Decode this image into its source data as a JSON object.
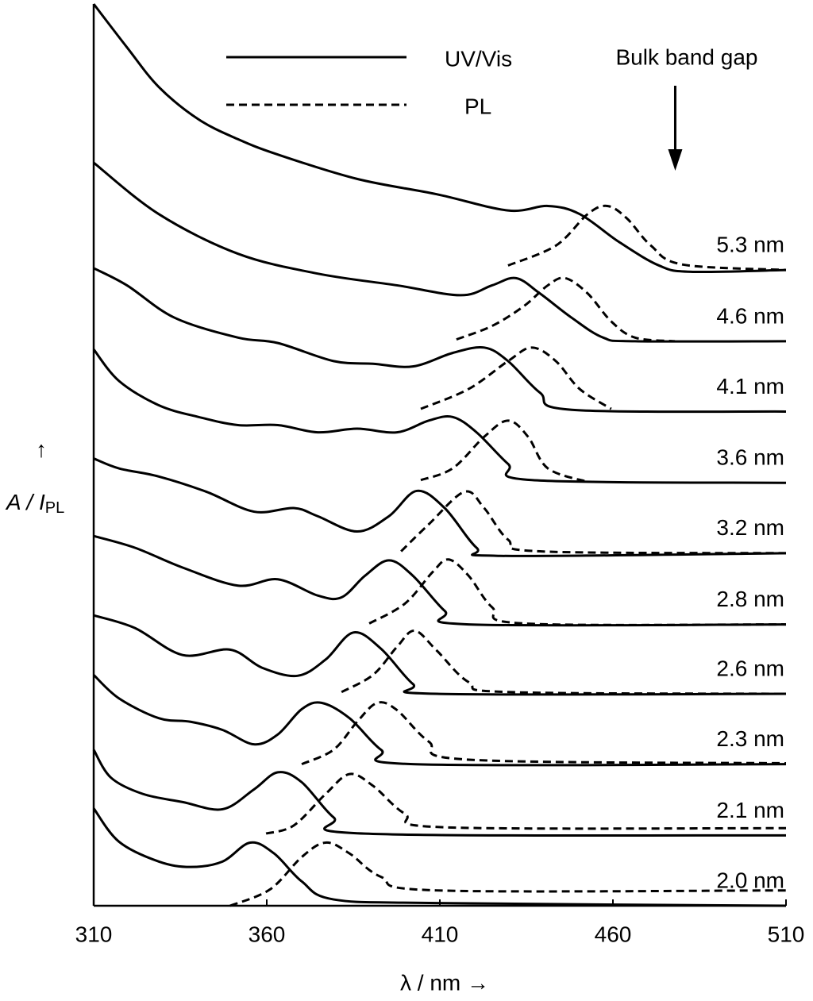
{
  "chart_data": {
    "type": "stacked-spectra",
    "xlabel": "λ / nm →",
    "ylabel_arrow": "↑",
    "ylabel": "A / I",
    "ylabel_sub": "PL",
    "xlim": [
      310,
      510
    ],
    "ylim": [
      0,
      100
    ],
    "xticks": [
      310,
      360,
      410,
      460,
      510
    ],
    "color": "#000000",
    "legend": [
      {
        "name": "UV/Vis",
        "dash": "solid"
      },
      {
        "name": "PL",
        "dash": "dashed"
      }
    ],
    "bulk_band_gap": {
      "label": "Bulk band gap",
      "x": 478
    },
    "samples": [
      {
        "label": "5.3 nm",
        "uvvis": {
          "x": [
            310,
            319.6,
            328.8,
            340.3,
            351.7,
            363.2,
            386.1,
            409.1,
            429.7,
            441.2,
            450.4,
            461.8,
            473.3,
            482.5,
            510
          ],
          "values": [
            100,
            95.2,
            90.8,
            87.2,
            85.0,
            83.3,
            80.6,
            78.9,
            77.1,
            77.6,
            76.7,
            73.6,
            71.0,
            70.3,
            70.5
          ]
        },
        "pl": {
          "x": [
            429.7,
            443.5,
            452.7,
            458.4,
            464.1,
            471,
            480.2,
            510
          ],
          "values": [
            71.0,
            73.2,
            76.7,
            77.6,
            76.2,
            73.2,
            71.1,
            70.5
          ]
        }
      },
      {
        "label": "4.6 nm",
        "uvvis": {
          "x": [
            310,
            328.8,
            351.7,
            374.7,
            397.6,
            416,
            425.1,
            432,
            438.9,
            448.1,
            457.2,
            466.4,
            510
          ],
          "values": [
            82.4,
            76.7,
            72.3,
            70.1,
            68.8,
            67.7,
            68.8,
            69.6,
            67.9,
            65.2,
            63.0,
            62.6,
            62.6
          ]
        },
        "pl": {
          "x": [
            414.8,
            425.1,
            434.3,
            441.2,
            446.2,
            452.7,
            459.5,
            466.4,
            477.9
          ],
          "values": [
            62.8,
            64.3,
            66.5,
            68.8,
            69.6,
            67.9,
            64.8,
            63.0,
            62.6
          ]
        }
      },
      {
        "label": "4.1 nm",
        "uvvis": {
          "x": [
            310,
            319.6,
            333.4,
            351.7,
            363.2,
            379.3,
            390.7,
            402.2,
            413.7,
            422.8,
            429.7,
            438.9,
            448.1,
            510
          ],
          "values": [
            70.7,
            68.8,
            65.2,
            63.0,
            62.4,
            60.4,
            60.1,
            59.8,
            61.3,
            61.9,
            60.4,
            56.9,
            55.0,
            54.8
          ]
        },
        "pl": {
          "x": [
            404.5,
            418.3,
            429.7,
            436.6,
            443.5,
            450.4,
            459.5
          ],
          "values": [
            55.1,
            57.3,
            60.4,
            61.9,
            60.4,
            57.3,
            55.1
          ]
        }
      },
      {
        "label": "3.6 nm",
        "uvvis": {
          "x": [
            310,
            317.3,
            328.8,
            340.3,
            351.7,
            363.2,
            374.7,
            386.1,
            397.6,
            406.8,
            413.7,
            420.6,
            429.7,
            436.6,
            510
          ],
          "values": [
            61.7,
            58.2,
            55.5,
            54.2,
            53.3,
            53.3,
            52.5,
            52.9,
            52.5,
            53.8,
            54.2,
            52.5,
            49.0,
            47.2,
            46.9
          ]
        },
        "pl": {
          "x": [
            404.5,
            413.7,
            422.8,
            429.7,
            435.5,
            441.2,
            452.7
          ],
          "values": [
            47.2,
            48.5,
            52.0,
            53.8,
            52.0,
            48.5,
            47.0
          ]
        }
      },
      {
        "label": "3.2 nm",
        "uvvis": {
          "x": [
            310,
            317.3,
            328.8,
            342.6,
            356.3,
            367.8,
            374.7,
            386.1,
            395.3,
            403.3,
            411.4,
            420.6,
            427.4,
            510
          ],
          "values": [
            49.6,
            48.5,
            47.6,
            45.9,
            43.7,
            44.1,
            43.2,
            41.5,
            43.2,
            46.0,
            44.1,
            39.7,
            38.8,
            39.1
          ]
        },
        "pl": {
          "x": [
            398.8,
            406.8,
            417.1,
            422.8,
            429.7,
            438.9,
            510
          ],
          "values": [
            39.3,
            42.3,
            45.9,
            44.1,
            40.6,
            39.3,
            39.1
          ]
        }
      },
      {
        "label": "2.8 nm",
        "uvvis": {
          "x": [
            310,
            321.9,
            335.7,
            351.7,
            363.2,
            374.7,
            381.6,
            388.4,
            395.3,
            402.2,
            411.4,
            418.3,
            510
          ],
          "values": [
            41.0,
            39.7,
            37.5,
            35.5,
            36.2,
            34.4,
            34.2,
            36.6,
            38.3,
            36.6,
            32.7,
            31.2,
            31.2
          ]
        },
        "pl": {
          "x": [
            389.6,
            399.9,
            407.9,
            412.5,
            418.3,
            425.1,
            434.3,
            510
          ],
          "values": [
            31.3,
            33.5,
            37.0,
            38.4,
            36.6,
            33.1,
            31.3,
            31.2
          ]
        }
      },
      {
        "label": "2.6 nm",
        "uvvis": {
          "x": [
            310,
            321.9,
            335.7,
            349.4,
            358.6,
            368.9,
            377,
            385,
            393,
            402.2,
            409.1,
            510
          ],
          "values": [
            32.2,
            30.8,
            27.8,
            28.4,
            26.4,
            25.5,
            27.3,
            30.3,
            28.5,
            24.6,
            23.5,
            23.5
          ]
        },
        "pl": {
          "x": [
            381.6,
            390.7,
            397.6,
            402.7,
            409.1,
            418.3,
            429.7,
            510
          ],
          "values": [
            23.7,
            25.6,
            28.7,
            30.5,
            28.3,
            24.8,
            23.7,
            23.5
          ]
        }
      },
      {
        "label": "2.3 nm",
        "uvvis": {
          "x": [
            310,
            317.3,
            328.8,
            338,
            347.2,
            356.3,
            363.2,
            370.1,
            375.8,
            383.9,
            393,
            402.2,
            510
          ],
          "values": [
            25.6,
            23.0,
            20.8,
            20.4,
            19.5,
            17.9,
            19.0,
            21.8,
            22.5,
            20.8,
            17.3,
            15.7,
            15.7
          ]
        },
        "pl": {
          "x": [
            370.1,
            379.3,
            386.1,
            391.9,
            397.6,
            406.8,
            418.3,
            510
          ],
          "values": [
            15.7,
            17.3,
            20.4,
            22.5,
            21.7,
            18.2,
            16.2,
            15.8
          ]
        }
      },
      {
        "label": "2.1 nm",
        "uvvis": {
          "x": [
            310,
            315,
            324.2,
            335.7,
            347.2,
            356.3,
            363.2,
            370.1,
            379.3,
            388.4,
            510
          ],
          "values": [
            17.3,
            14.2,
            12.4,
            11.5,
            10.7,
            12.9,
            14.8,
            13.7,
            9.8,
            8.0,
            7.8
          ]
        },
        "pl": {
          "x": [
            359.8,
            367.8,
            377,
            383.9,
            390.7,
            399.9,
            411.4,
            510
          ],
          "values": [
            8.0,
            8.9,
            12.4,
            14.6,
            13.3,
            10.2,
            8.7,
            8.6
          ]
        }
      },
      {
        "label": "2.0 nm",
        "uvvis": {
          "x": [
            310,
            317.3,
            328.8,
            338,
            347.2,
            355.2,
            362.1,
            370.1,
            379.3,
            409.1,
            510
          ],
          "values": [
            10.8,
            7.1,
            4.9,
            4.3,
            4.9,
            7.0,
            5.8,
            2.7,
            0.7,
            0.3,
            0
          ]
        },
        "pl": {
          "x": [
            349.4,
            360.9,
            370.1,
            377,
            383.9,
            393,
            409.1,
            510
          ],
          "values": [
            0,
            1.8,
            5.4,
            7.0,
            5.8,
            3.2,
            1.7,
            1.7
          ]
        }
      }
    ]
  }
}
